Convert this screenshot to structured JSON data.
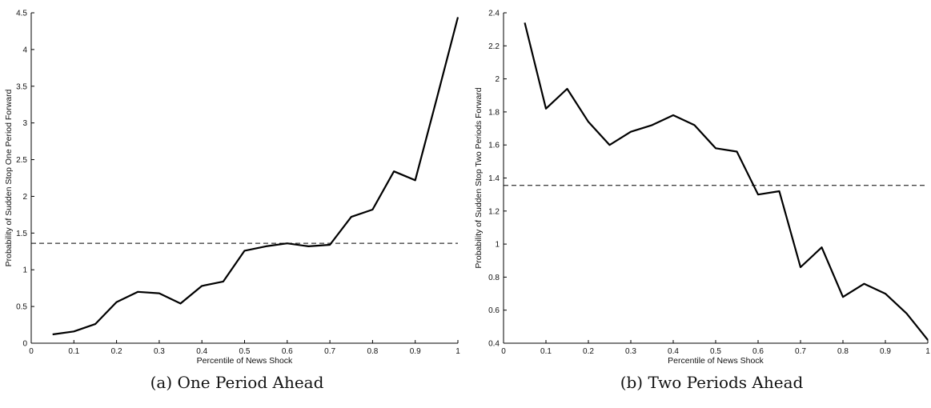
{
  "chart_data": [
    {
      "type": "line",
      "caption": "(a) One Period Ahead",
      "xlabel": "Percentile of News Shock",
      "ylabel": "Probability of Sudden Stop One Period Forward",
      "xlim": [
        0,
        1
      ],
      "ylim": [
        0,
        4.5
      ],
      "xticks": [
        0,
        0.1,
        0.2,
        0.3,
        0.4,
        0.5,
        0.6,
        0.7,
        0.8,
        0.9,
        1
      ],
      "xtick_labels": [
        "0",
        "0.1",
        "0.2",
        "0.3",
        "0.4",
        "0.5",
        "0.6",
        "0.7",
        "0.8",
        "0.9",
        "1"
      ],
      "yticks": [
        0,
        0.5,
        1,
        1.5,
        2,
        2.5,
        3,
        3.5,
        4,
        4.5
      ],
      "ytick_labels": [
        "0",
        "0.5",
        "1",
        "1.5",
        "2",
        "2.5",
        "3",
        "3.5",
        "4",
        "4.5"
      ],
      "grid": false,
      "reference_line": 1.36,
      "series": [
        {
          "x": [
            0.05,
            0.1,
            0.15,
            0.2,
            0.25,
            0.3,
            0.35,
            0.4,
            0.45,
            0.5,
            0.55,
            0.6,
            0.65,
            0.7,
            0.75,
            0.8,
            0.85,
            0.9,
            0.95,
            1.0
          ],
          "values": [
            0.12,
            0.16,
            0.26,
            0.56,
            0.7,
            0.68,
            0.54,
            0.78,
            0.84,
            1.26,
            1.32,
            1.36,
            1.32,
            1.34,
            1.72,
            1.82,
            2.34,
            2.22,
            3.32,
            4.44
          ]
        }
      ]
    },
    {
      "type": "line",
      "caption": "(b) Two Periods Ahead",
      "xlabel": "Percentile of News Shock",
      "ylabel": "Probability of Sudden Stop Two Periods Forward",
      "xlim": [
        0,
        1
      ],
      "ylim": [
        0.4,
        2.4
      ],
      "xticks": [
        0,
        0.1,
        0.2,
        0.3,
        0.4,
        0.5,
        0.6,
        0.7,
        0.8,
        0.9,
        1
      ],
      "xtick_labels": [
        "0",
        "0.1",
        "0.2",
        "0.3",
        "0.4",
        "0.5",
        "0.6",
        "0.7",
        "0.8",
        "0.9",
        "1"
      ],
      "yticks": [
        0.4,
        0.6,
        0.8,
        1.0,
        1.2,
        1.4,
        1.6,
        1.8,
        2.0,
        2.2,
        2.4
      ],
      "ytick_labels": [
        "0.4",
        "0.6",
        "0.8",
        "1",
        "1.2",
        "1.4",
        "1.6",
        "1.8",
        "2",
        "2.2",
        "2.4"
      ],
      "grid": false,
      "reference_line": 1.355,
      "series": [
        {
          "x": [
            0.05,
            0.1,
            0.15,
            0.2,
            0.25,
            0.3,
            0.35,
            0.4,
            0.45,
            0.5,
            0.55,
            0.6,
            0.65,
            0.7,
            0.75,
            0.8,
            0.85,
            0.9,
            0.95,
            1.0
          ],
          "values": [
            2.34,
            1.82,
            1.94,
            1.74,
            1.6,
            1.68,
            1.72,
            1.78,
            1.72,
            1.58,
            1.56,
            1.3,
            1.32,
            0.86,
            0.98,
            0.68,
            0.76,
            0.7,
            0.58,
            0.42
          ]
        }
      ]
    }
  ]
}
